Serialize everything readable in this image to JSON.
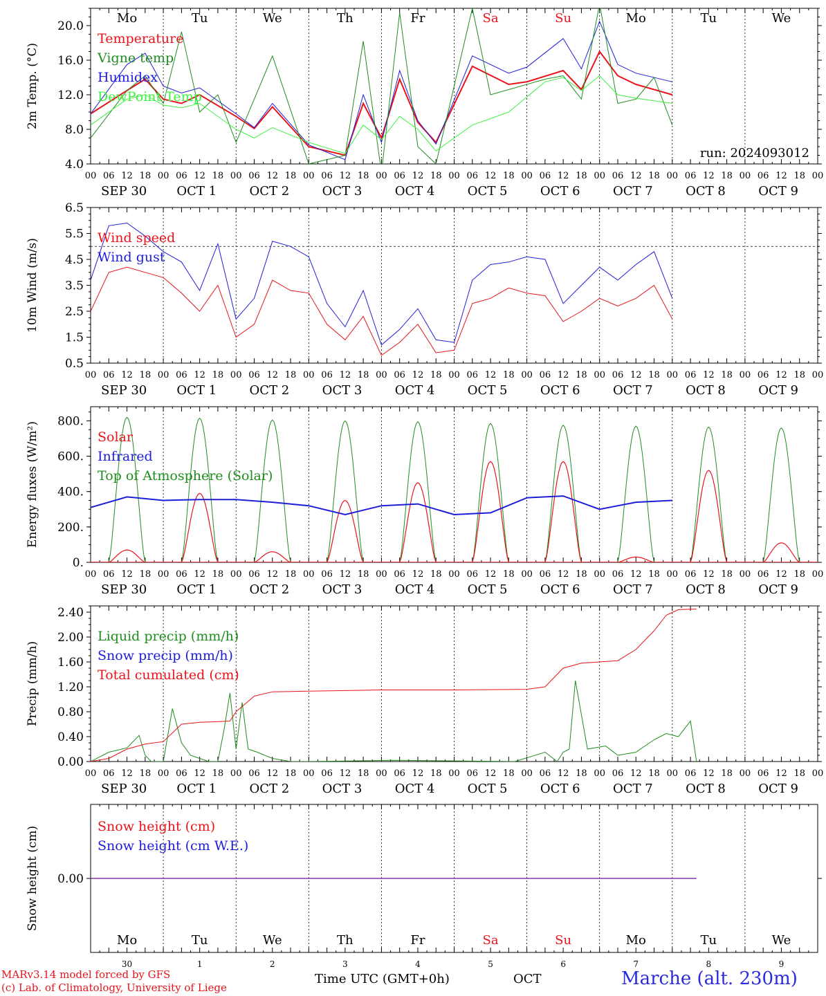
{
  "days": [
    "Mo",
    "Tu",
    "We",
    "Th",
    "Fr",
    "Sa",
    "Su",
    "Mo",
    "Tu",
    "We"
  ],
  "weekend_days": [
    5,
    6
  ],
  "date_labels": [
    "SEP 30",
    "OCT  1",
    "OCT  2",
    "OCT  3",
    "OCT  4",
    "OCT  5",
    "OCT  6",
    "OCT  7",
    "OCT  8",
    "OCT  9"
  ],
  "hour_ticks": [
    "00",
    "06",
    "12",
    "18"
  ],
  "final_hour_tick": "00",
  "snow_day_numbers": [
    "30",
    "1",
    "2",
    "3",
    "4",
    "5",
    "6",
    "7",
    "8",
    "9"
  ],
  "colors": {
    "red": "#e8131a",
    "green": "#1e8c1e",
    "blue": "#1d1dd9",
    "lightgreen": "#3ef03e",
    "weekend": "#e8131a",
    "purple": "#8833aa"
  },
  "footer": {
    "model": "MARv3.14 model forced by GFS",
    "copyright": "(c) Lab. of Climatology, University of Liege",
    "time_label": "Time UTC (GMT+0h)",
    "month": "OCT",
    "station": "Marche (alt. 230m)"
  },
  "chart_data": [
    {
      "id": "temperature",
      "type": "line",
      "ylabel": "2m Temp. (°C)",
      "ylim": [
        4,
        22
      ],
      "ticks": [
        4.0,
        8.0,
        12.0,
        16.0,
        20.0
      ],
      "tick_decimals": 1,
      "annotation": "run: 2024093012",
      "legend": [
        {
          "label": "Temperature",
          "color": "red"
        },
        {
          "label": "Vigne temp",
          "color": "green"
        },
        {
          "label": "Humidex",
          "color": "blue"
        },
        {
          "label": "DewPoint Temp",
          "color": "lightgreen"
        }
      ],
      "x_hours": [
        0,
        12,
        24,
        36,
        48,
        60,
        72,
        84,
        96,
        108,
        120,
        132,
        144,
        156,
        168,
        180,
        192,
        204,
        216,
        228,
        240
      ],
      "series": [
        {
          "name": "Temperature",
          "color": "red",
          "width": 2,
          "values": [
            9.8,
            12.5,
            13.8,
            11.5,
            11.0,
            12.0,
            9.5,
            8.1,
            10.6,
            6.0,
            5.0,
            11.0,
            7.0,
            13.8,
            8.8,
            6.5,
            15.3,
            13.2,
            13.5,
            14.8,
            12.6,
            17.0,
            14.2,
            13.2,
            12.0
          ],
          "x": [
            0,
            12,
            18,
            24,
            30,
            36,
            48,
            54,
            60,
            72,
            84,
            90,
            96,
            102,
            108,
            114,
            126,
            138,
            144,
            156,
            162,
            168,
            174,
            180,
            192
          ]
        },
        {
          "name": "Humidex",
          "color": "blue",
          "width": 1,
          "values": [
            9.8,
            15.5,
            16.8,
            13.0,
            12.2,
            12.8,
            9.8,
            8.2,
            11.0,
            6.2,
            4.5,
            12.0,
            6.5,
            14.8,
            9.0,
            6.3,
            16.5,
            14.5,
            15.2,
            18.5,
            15.0,
            20.5,
            15.5,
            14.5,
            13.5
          ],
          "x": [
            0,
            12,
            18,
            24,
            30,
            36,
            48,
            54,
            60,
            72,
            84,
            90,
            96,
            102,
            108,
            114,
            126,
            138,
            144,
            156,
            162,
            168,
            174,
            180,
            192
          ]
        },
        {
          "name": "Vigne temp",
          "color": "green",
          "width": 1,
          "values": [
            7.0,
            12.5,
            14.2,
            11.0,
            19.3,
            10.0,
            12.0,
            6.5,
            16.5,
            4.0,
            5.0,
            18.2,
            3.0,
            21.5,
            6.0,
            4.0,
            22.0,
            12.0,
            13.8,
            14.2,
            11.5,
            22.5,
            11.0,
            11.5,
            14.0,
            8.5
          ],
          "x": [
            0,
            12,
            18,
            24,
            30,
            36,
            42,
            48,
            60,
            72,
            84,
            90,
            96,
            102,
            108,
            114,
            126,
            132,
            150,
            156,
            162,
            168,
            174,
            180,
            186,
            192
          ]
        },
        {
          "name": "DewPoint Temp",
          "color": "lightgreen",
          "width": 1,
          "values": [
            8.5,
            11.5,
            12.0,
            10.8,
            10.5,
            11.0,
            8.0,
            7.0,
            8.2,
            6.5,
            5.2,
            8.5,
            6.8,
            9.5,
            8.0,
            5.5,
            8.5,
            10.0,
            13.5,
            14.0,
            12.5,
            14.2,
            12.0,
            11.6,
            11.0
          ],
          "x": [
            0,
            12,
            18,
            24,
            30,
            36,
            48,
            54,
            60,
            72,
            84,
            90,
            96,
            102,
            108,
            114,
            126,
            138,
            150,
            156,
            162,
            168,
            174,
            180,
            192
          ]
        }
      ]
    },
    {
      "id": "wind",
      "type": "line",
      "ylabel": "10m Wind (m/s)",
      "ylim": [
        0.5,
        6.5
      ],
      "ticks": [
        0.5,
        1.5,
        2.5,
        3.5,
        4.5,
        5.5,
        6.5
      ],
      "tick_decimals": 1,
      "ref_line": 5.0,
      "legend": [
        {
          "label": "Wind speed",
          "color": "red"
        },
        {
          "label": "Wind gust",
          "color": "blue"
        }
      ],
      "series": [
        {
          "name": "Wind speed",
          "color": "red",
          "width": 1,
          "x": [
            0,
            6,
            12,
            18,
            24,
            30,
            36,
            42,
            48,
            54,
            60,
            66,
            72,
            78,
            84,
            90,
            96,
            102,
            108,
            114,
            120,
            126,
            132,
            138,
            144,
            150,
            156,
            162,
            168,
            174,
            180,
            186,
            192
          ],
          "values": [
            2.5,
            4.0,
            4.2,
            4.0,
            3.8,
            3.2,
            2.5,
            3.5,
            1.5,
            2.0,
            3.7,
            3.3,
            3.2,
            2.0,
            1.4,
            2.3,
            0.8,
            1.3,
            2.0,
            0.9,
            1.0,
            2.8,
            3.0,
            3.4,
            3.2,
            3.1,
            2.1,
            2.5,
            3.0,
            2.7,
            3.0,
            3.5,
            2.2
          ]
        },
        {
          "name": "Wind gust",
          "color": "blue",
          "width": 1,
          "x": [
            0,
            6,
            12,
            18,
            24,
            30,
            36,
            42,
            48,
            54,
            60,
            66,
            72,
            78,
            84,
            90,
            96,
            102,
            108,
            114,
            120,
            126,
            132,
            138,
            144,
            150,
            156,
            162,
            168,
            174,
            180,
            186,
            192
          ],
          "values": [
            3.7,
            5.8,
            5.9,
            5.4,
            4.8,
            4.4,
            3.3,
            5.1,
            2.2,
            3.0,
            5.2,
            5.0,
            4.6,
            2.8,
            1.9,
            3.3,
            1.2,
            1.8,
            2.6,
            1.4,
            1.3,
            3.7,
            4.3,
            4.4,
            4.6,
            4.5,
            2.8,
            3.5,
            4.2,
            3.7,
            4.3,
            4.8,
            3.0
          ]
        }
      ]
    },
    {
      "id": "energy",
      "type": "line",
      "ylabel": "Energy fluxes (W/m²)",
      "ylim": [
        0,
        880
      ],
      "ticks": [
        0,
        200,
        400,
        600,
        800
      ],
      "tick_labels": [
        "0.",
        "200.",
        "400.",
        "600.",
        "800."
      ],
      "legend": [
        {
          "label": "Solar",
          "color": "red"
        },
        {
          "label": "Infrared",
          "color": "blue"
        },
        {
          "label": "Top of Atmosphere (Solar)",
          "color": "green"
        }
      ],
      "toa_peaks": [
        820,
        815,
        805,
        800,
        795,
        785,
        775,
        770,
        765,
        760
      ],
      "solar_peaks": [
        70,
        390,
        60,
        350,
        450,
        570,
        570,
        30,
        520,
        110
      ],
      "infrared": {
        "x": [
          0,
          12,
          24,
          36,
          48,
          60,
          72,
          84,
          96,
          108,
          120,
          132,
          144,
          156,
          168,
          180,
          192
        ],
        "values": [
          310,
          370,
          350,
          355,
          355,
          340,
          320,
          270,
          320,
          330,
          270,
          280,
          365,
          375,
          300,
          340,
          350
        ]
      }
    },
    {
      "id": "precip",
      "type": "line",
      "ylabel": "Precip (mm/h)",
      "ylim": [
        0,
        2.5
      ],
      "ticks": [
        0,
        0.4,
        0.8,
        1.2,
        1.6,
        2.0,
        2.4
      ],
      "tick_decimals": 2,
      "legend": [
        {
          "label": "Liquid precip (mm/h)",
          "color": "green"
        },
        {
          "label": "Snow precip (mm/h)",
          "color": "blue"
        },
        {
          "label": "Total cumulated (cm)",
          "color": "red"
        }
      ],
      "series": [
        {
          "name": "Liquid precip (mm/h)",
          "color": "green",
          "width": 1,
          "x": [
            0,
            6,
            12,
            16,
            18,
            20,
            24,
            27,
            30,
            33,
            36,
            39,
            42,
            44,
            46,
            48,
            50,
            52,
            55,
            60,
            66,
            72,
            100,
            140,
            150,
            154,
            156,
            158,
            160,
            164,
            170,
            174,
            180,
            186,
            190,
            194,
            198,
            200
          ],
          "values": [
            0,
            0.15,
            0.22,
            0.42,
            0.1,
            0,
            0,
            0.85,
            0.3,
            0.1,
            0.05,
            0,
            0,
            0.5,
            1.1,
            0.2,
            0.95,
            0.2,
            0.15,
            0.05,
            0,
            0,
            0.02,
            0,
            0.15,
            0,
            0.15,
            0.2,
            1.3,
            0.2,
            0.25,
            0.1,
            0.15,
            0.35,
            0.45,
            0.4,
            0.65,
            0
          ]
        },
        {
          "name": "Total cumulated (cm)",
          "color": "red",
          "width": 1,
          "x": [
            0,
            6,
            12,
            18,
            24,
            30,
            36,
            42,
            46,
            48,
            54,
            60,
            72,
            96,
            120,
            144,
            150,
            156,
            162,
            168,
            174,
            180,
            186,
            190,
            194,
            200
          ],
          "values": [
            0,
            0.05,
            0.2,
            0.28,
            0.32,
            0.6,
            0.63,
            0.64,
            0.65,
            0.8,
            1.05,
            1.12,
            1.13,
            1.15,
            1.15,
            1.16,
            1.2,
            1.5,
            1.58,
            1.6,
            1.62,
            1.8,
            2.1,
            2.35,
            2.44,
            2.45
          ]
        }
      ]
    },
    {
      "id": "snow",
      "type": "line",
      "ylabel": "Snow height (cm)",
      "ylim": [
        -1,
        1
      ],
      "ticks": [
        0
      ],
      "tick_decimals": 2,
      "legend": [
        {
          "label": "Snow height (cm)",
          "color": "red"
        },
        {
          "label": "Snow height (cm W.E.)",
          "color": "blue"
        }
      ],
      "series": [
        {
          "name": "Snow height (cm)",
          "color": "purple",
          "width": 1.5,
          "x": [
            0,
            200
          ],
          "values": [
            0,
            0
          ]
        }
      ]
    }
  ]
}
